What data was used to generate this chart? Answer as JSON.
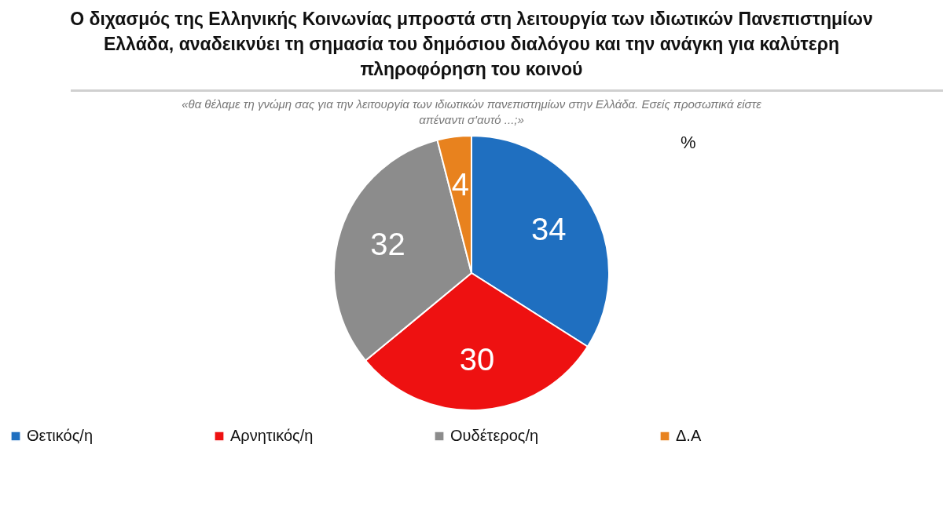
{
  "chart_data": {
    "type": "pie",
    "title": "Ο διχασμός της Ελληνικής Κοινωνίας μπροστά στη λειτουργία των ιδιωτικών Πανεπιστημίων Ελλάδα, αναδεικνύει τη σημασία του δημόσιου διαλόγου και την ανάγκη για καλύτερη πληροφόρηση του κοινού",
    "subtitle": "«θα θέλαμε τη γνώμη σας για την λειτουργία των ιδιωτικών πανεπιστημίων στην Ελλάδα. Εσείς προσωπικά είστε απέναντι σ'αυτό ...;»",
    "categories": [
      "Θετικός/η",
      "Αρνητικός/η",
      "Ουδέτερος/η",
      "Δ.Α"
    ],
    "values": [
      34,
      30,
      32,
      4
    ],
    "colors": [
      "#1f6fc0",
      "#ee1111",
      "#8c8c8c",
      "#e8821e"
    ],
    "data_labels": true,
    "legend": "bottom",
    "annotations": [
      "%"
    ]
  }
}
